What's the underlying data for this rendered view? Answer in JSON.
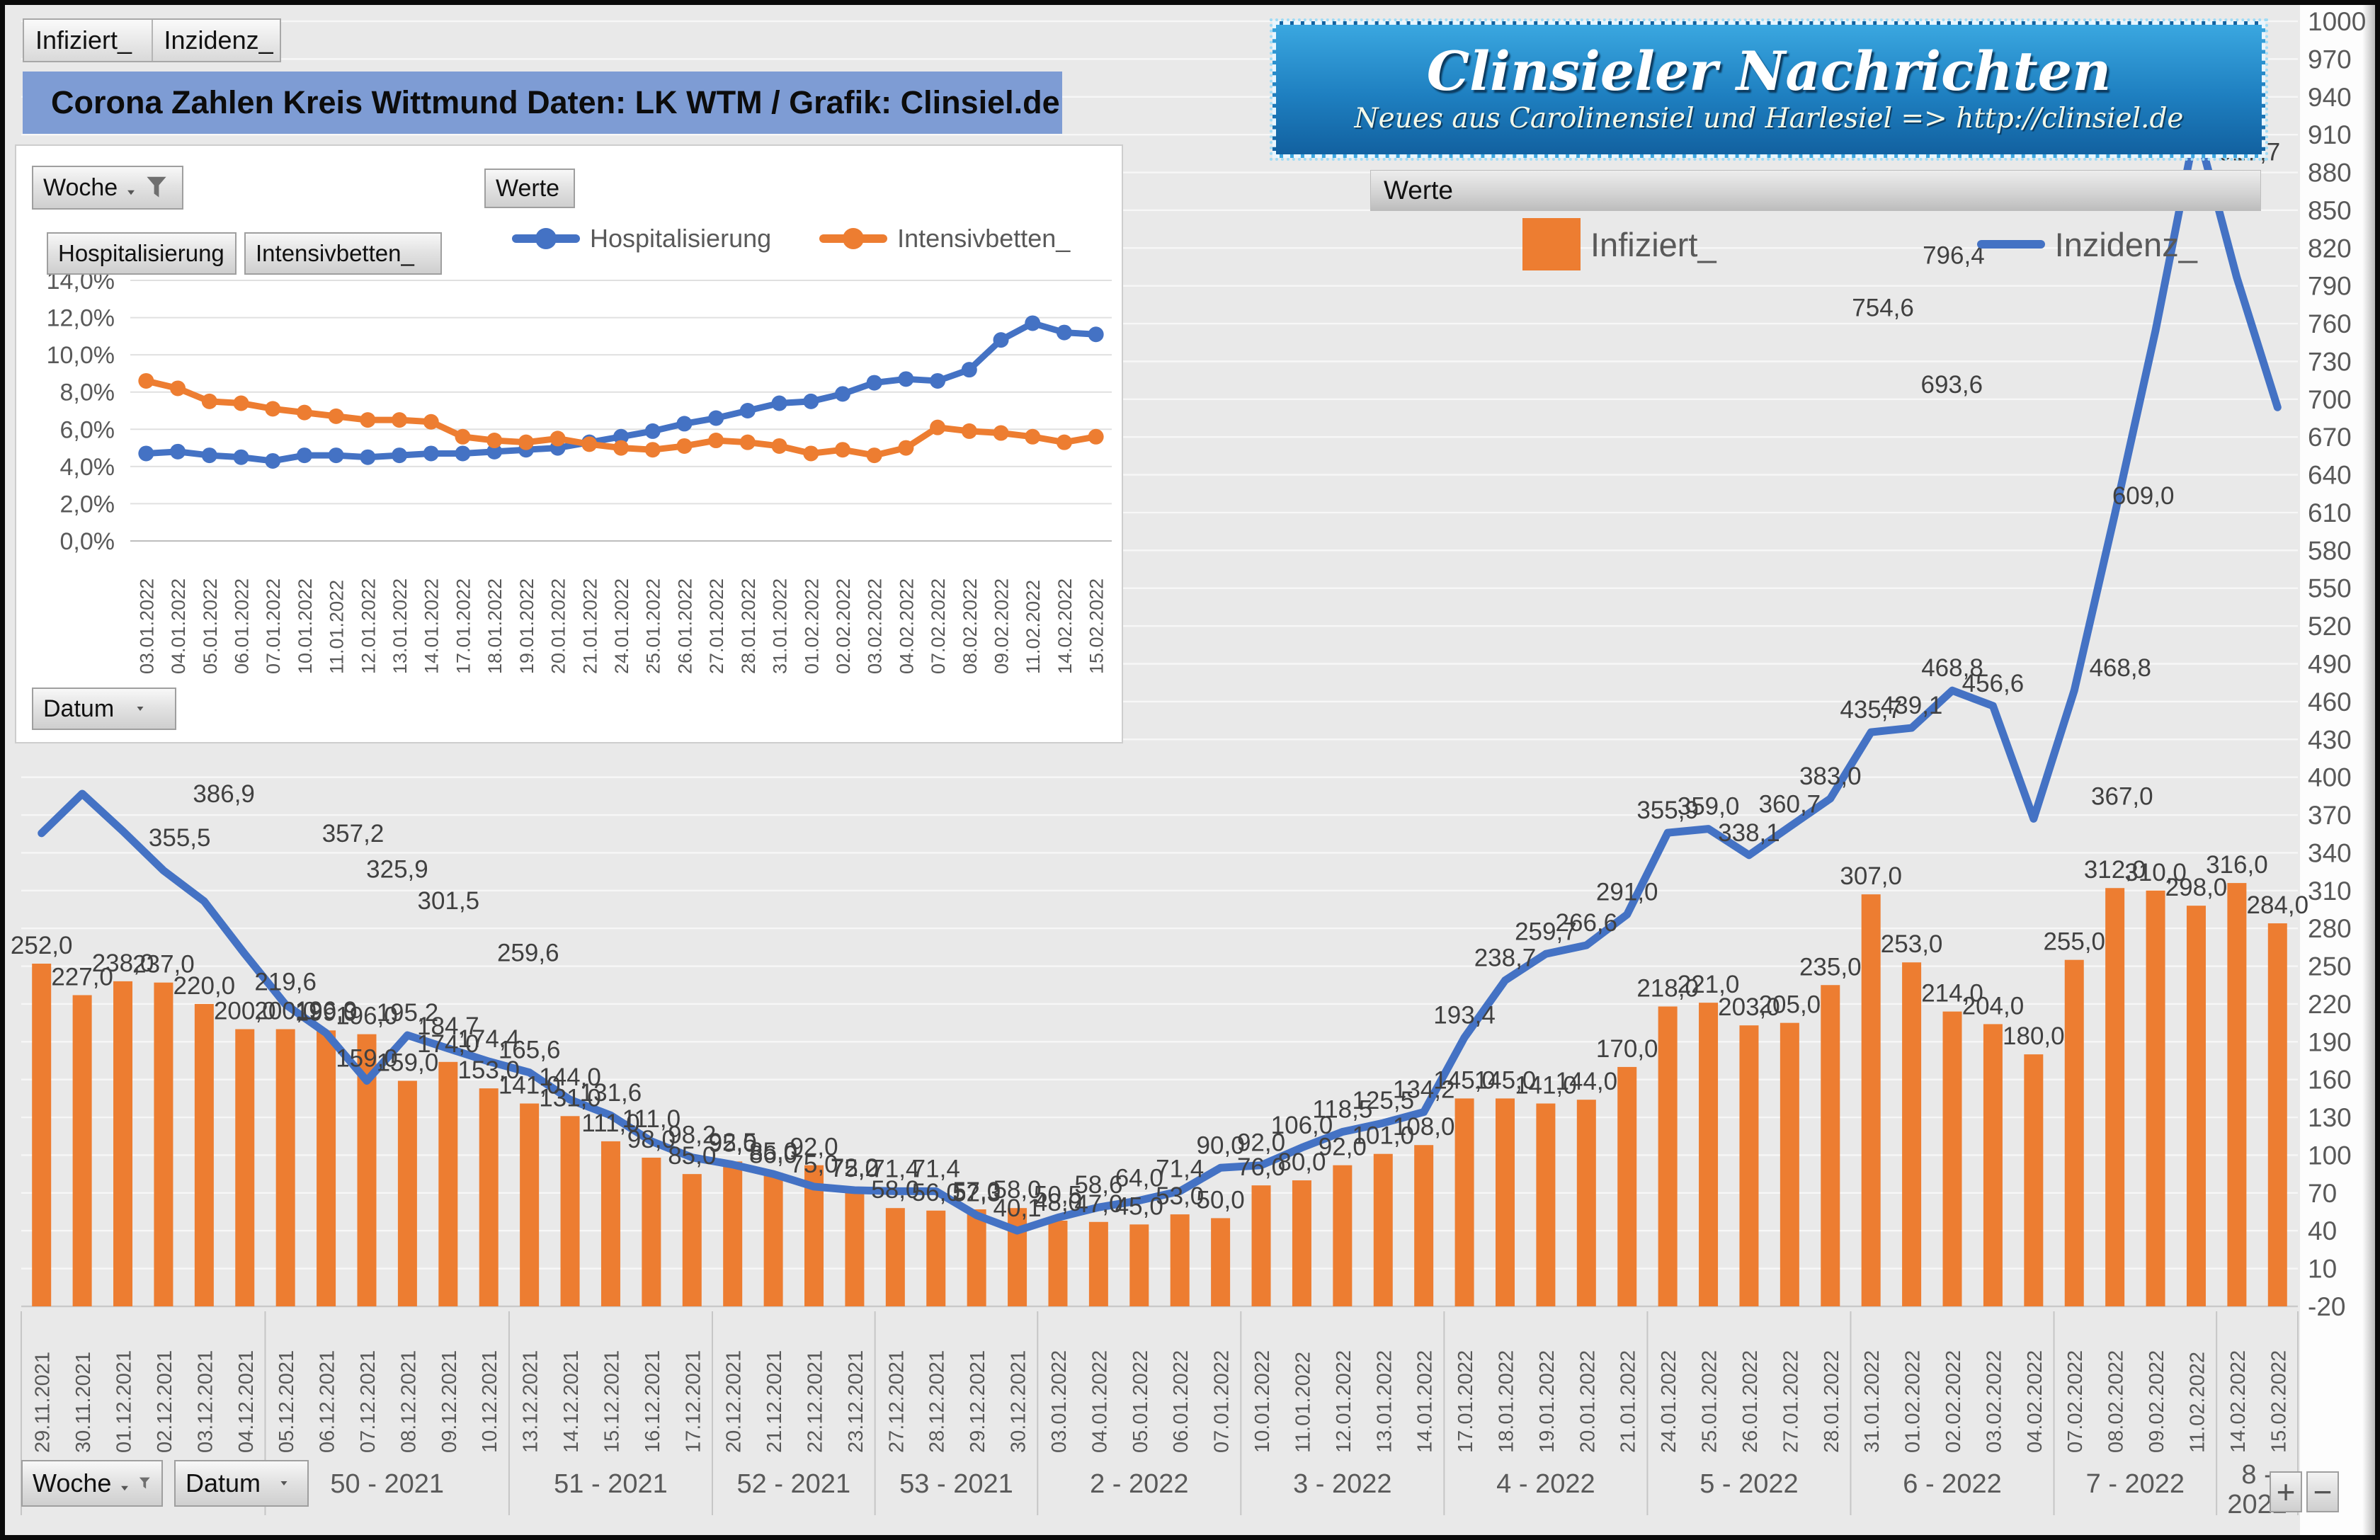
{
  "tabs": {
    "infiziert": "Infiziert_",
    "inzidenz": "Inzidenz_"
  },
  "title": {
    "text": "Corona Zahlen Kreis Wittmund  Daten: LK WTM / Grafik: Clinsiel.de"
  },
  "banner": {
    "title": "Clinsieler Nachrichten",
    "subtitle": "Neues aus Carolinensiel und Harlesiel   => http://clinsiel.de"
  },
  "small_chart": {
    "woche_label": "Woche",
    "werte_label": "Werte",
    "field_hospitalisierung": "Hospitalisierung",
    "field_intensivbetten": "Intensivbetten_",
    "datum_label": "Datum"
  },
  "main_chart": {
    "werte_label": "Werte",
    "woche_label": "Woche",
    "datum_label": "Datum",
    "zoom_in_label": "+",
    "zoom_out_label": "−"
  },
  "colors": {
    "bar_orange": "#ED7D31",
    "line_blue": "#4472C4",
    "title_bar": "#7e9cd4",
    "label_text": "#404040",
    "axis_text": "#595959"
  },
  "chart_data": [
    {
      "type": "bar",
      "title": "Corona Zahlen Kreis Wittmund",
      "x": [
        "29.11.2021",
        "30.11.2021",
        "01.12.2021",
        "02.12.2021",
        "03.12.2021",
        "04.12.2021",
        "05.12.2021",
        "06.12.2021",
        "07.12.2021",
        "08.12.2021",
        "09.12.2021",
        "10.12.2021",
        "13.12.2021",
        "14.12.2021",
        "15.12.2021",
        "16.12.2021",
        "17.12.2021",
        "20.12.2021",
        "21.12.2021",
        "22.12.2021",
        "23.12.2021",
        "27.12.2021",
        "28.12.2021",
        "29.12.2021",
        "30.12.2021",
        "03.01.2022",
        "04.01.2022",
        "05.01.2022",
        "06.01.2022",
        "07.01.2022",
        "10.01.2022",
        "11.01.2022",
        "12.01.2022",
        "13.01.2022",
        "14.01.2022",
        "17.01.2022",
        "18.01.2022",
        "19.01.2022",
        "20.01.2022",
        "21.01.2022",
        "24.01.2022",
        "25.01.2022",
        "26.01.2022",
        "27.01.2022",
        "28.01.2022",
        "31.01.2022",
        "01.02.2022",
        "02.02.2022",
        "03.02.2022",
        "04.02.2022",
        "07.02.2022",
        "08.02.2022",
        "09.02.2022",
        "11.02.2022",
        "14.02.2022",
        "15.02.2022"
      ],
      "series": [
        {
          "name": "Infiziert_",
          "type": "bar",
          "color": "#ED7D31",
          "values": [
            252,
            227,
            238,
            237,
            220,
            200,
            200,
            199,
            196,
            159,
            174,
            153,
            141,
            131,
            111,
            98,
            85,
            95,
            86,
            92,
            75,
            58,
            56,
            57,
            58,
            48,
            47,
            45,
            53,
            50,
            76,
            80,
            92,
            101,
            108,
            145,
            145,
            141,
            144,
            170,
            218,
            221,
            203,
            205,
            235,
            307,
            253,
            214,
            204,
            180,
            255,
            312,
            310,
            298,
            316,
            284
          ]
        },
        {
          "name": "Inzidenz_",
          "type": "line",
          "color": "#4472C4",
          "values": [
            355.5,
            386.9,
            357.2,
            325.9,
            301.5,
            259.6,
            219.6,
            196.9,
            159.0,
            195.2,
            184.7,
            174.4,
            165.6,
            144.0,
            131.6,
            111.0,
            98.2,
            92.5,
            85.0,
            75.0,
            72.2,
            71.4,
            71.4,
            52.3,
            40.1,
            50.5,
            58.6,
            64.0,
            71.4,
            90.0,
            92.0,
            106.0,
            118.5,
            125.5,
            134.2,
            193.4,
            238.7,
            259.7,
            266.6,
            291.0,
            355.9,
            359.0,
            338.1,
            360.7,
            383.0,
            435.7,
            439.1,
            468.8,
            456.6,
            367.0,
            468.8,
            609.0,
            754.6,
            917.7,
            796.4,
            693.6
          ]
        }
      ],
      "weeks": [
        {
          "label": "",
          "n": 6
        },
        {
          "label": "50 - 2021",
          "n": 6
        },
        {
          "label": "51 - 2021",
          "n": 5
        },
        {
          "label": "52 - 2021",
          "n": 4
        },
        {
          "label": "53 - 2021",
          "n": 4
        },
        {
          "label": "2 - 2022",
          "n": 5
        },
        {
          "label": "3 - 2022",
          "n": 5
        },
        {
          "label": "4 - 2022",
          "n": 5
        },
        {
          "label": "5 - 2022",
          "n": 5
        },
        {
          "label": "6 - 2022",
          "n": 5
        },
        {
          "label": "7 - 2022",
          "n": 4
        },
        {
          "label": "8 - 2022",
          "n": 2
        }
      ],
      "ylim": [
        -20,
        1000
      ],
      "ytick_step": 30,
      "grid": true,
      "legend_position": "top-right",
      "line_label_offsets": {
        "0": [
          195,
          38
        ],
        "1": [
          200,
          32
        ],
        "2": [
          325,
          35
        ],
        "3": [
          330,
          30
        ],
        "4": [
          345,
          31
        ],
        "5": [
          400,
          30
        ],
        "49": [
          125,
          0
        ],
        "50": [
          65,
          0
        ],
        "51": [
          40,
          6
        ],
        "52": [
          -385,
          0
        ],
        "53": [
          75,
          70
        ],
        "54": [
          -400,
          0
        ],
        "55": [
          -460,
          0
        ]
      }
    },
    {
      "type": "line",
      "x": [
        "03.01.2022",
        "04.01.2022",
        "05.01.2022",
        "06.01.2022",
        "07.01.2022",
        "10.01.2022",
        "11.01.2022",
        "12.01.2022",
        "13.01.2022",
        "14.01.2022",
        "17.01.2022",
        "18.01.2022",
        "19.01.2022",
        "20.01.2022",
        "21.01.2022",
        "24.01.2022",
        "25.01.2022",
        "26.01.2022",
        "27.01.2022",
        "28.01.2022",
        "31.01.2022",
        "01.02.2022",
        "02.02.2022",
        "03.02.2022",
        "04.02.2022",
        "07.02.2022",
        "08.02.2022",
        "09.02.2022",
        "11.02.2022",
        "14.02.2022",
        "15.02.2022"
      ],
      "series": [
        {
          "name": "Hospitalisierung",
          "type": "line",
          "color": "#4472C4",
          "values": [
            4.7,
            4.8,
            4.6,
            4.5,
            4.3,
            4.6,
            4.6,
            4.5,
            4.6,
            4.7,
            4.7,
            4.8,
            4.9,
            5.0,
            5.3,
            5.6,
            5.9,
            6.3,
            6.6,
            7.0,
            7.4,
            7.5,
            7.9,
            8.5,
            8.7,
            8.6,
            9.2,
            10.8,
            11.7,
            11.2,
            11.1
          ]
        },
        {
          "name": "Intensivbetten_",
          "type": "line",
          "color": "#ED7D31",
          "values": [
            8.6,
            8.2,
            7.5,
            7.4,
            7.1,
            6.9,
            6.7,
            6.5,
            6.5,
            6.4,
            5.6,
            5.4,
            5.3,
            5.5,
            5.2,
            5.0,
            4.9,
            5.1,
            5.4,
            5.3,
            5.1,
            4.7,
            4.9,
            4.6,
            5.0,
            6.1,
            5.9,
            5.8,
            5.6,
            5.3,
            5.6
          ]
        }
      ],
      "ylim": [
        0,
        14
      ],
      "ytick_step": 2,
      "ytick_format": "percent",
      "grid": true,
      "legend_position": "top"
    }
  ]
}
